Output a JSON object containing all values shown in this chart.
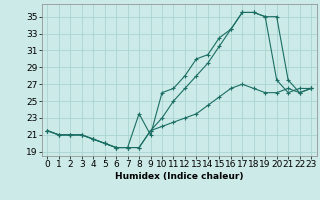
{
  "xlabel": "Humidex (Indice chaleur)",
  "bg_color": "#cceae7",
  "grid_color": "#aad4d0",
  "line_color": "#1a6e64",
  "line1_x": [
    0,
    1,
    2,
    3,
    4,
    5,
    6,
    7,
    8,
    9,
    10,
    11,
    12,
    13,
    14,
    15,
    16,
    17,
    18,
    19,
    20,
    21,
    22,
    23
  ],
  "line1_y": [
    21.5,
    21.0,
    21.0,
    21.0,
    20.5,
    20.0,
    19.5,
    19.5,
    19.5,
    21.5,
    22.0,
    22.5,
    23.0,
    23.5,
    24.5,
    25.5,
    26.5,
    27.0,
    26.5,
    26.0,
    26.0,
    26.5,
    26.0,
    26.5
  ],
  "line2_x": [
    0,
    1,
    2,
    3,
    4,
    5,
    6,
    7,
    8,
    9,
    10,
    11,
    12,
    13,
    14,
    15,
    16,
    17,
    18,
    19,
    20,
    21,
    22,
    23
  ],
  "line2_y": [
    21.5,
    21.0,
    21.0,
    21.0,
    20.5,
    20.0,
    19.5,
    19.5,
    23.5,
    21.0,
    26.0,
    26.5,
    28.0,
    30.0,
    30.5,
    32.5,
    33.5,
    35.5,
    35.5,
    35.0,
    35.0,
    27.5,
    26.0,
    26.5
  ],
  "line3_x": [
    0,
    1,
    2,
    3,
    4,
    5,
    6,
    7,
    8,
    9,
    10,
    11,
    12,
    13,
    14,
    15,
    16,
    17,
    18,
    19,
    20,
    21,
    22,
    23
  ],
  "line3_y": [
    21.5,
    21.0,
    21.0,
    21.0,
    20.5,
    20.0,
    19.5,
    19.5,
    19.5,
    21.5,
    23.0,
    25.0,
    26.5,
    28.0,
    29.5,
    31.5,
    33.5,
    35.5,
    35.5,
    35.0,
    27.5,
    26.0,
    26.5,
    26.5
  ],
  "ylim": [
    18.5,
    36.5
  ],
  "yticks": [
    19,
    21,
    23,
    25,
    27,
    29,
    31,
    33,
    35
  ],
  "xlim": [
    -0.5,
    23.5
  ],
  "xticks": [
    0,
    1,
    2,
    3,
    4,
    5,
    6,
    7,
    8,
    9,
    10,
    11,
    12,
    13,
    14,
    15,
    16,
    17,
    18,
    19,
    20,
    21,
    22,
    23
  ],
  "marker": "+",
  "markersize": 3,
  "linewidth": 0.8,
  "font_size": 6.5
}
